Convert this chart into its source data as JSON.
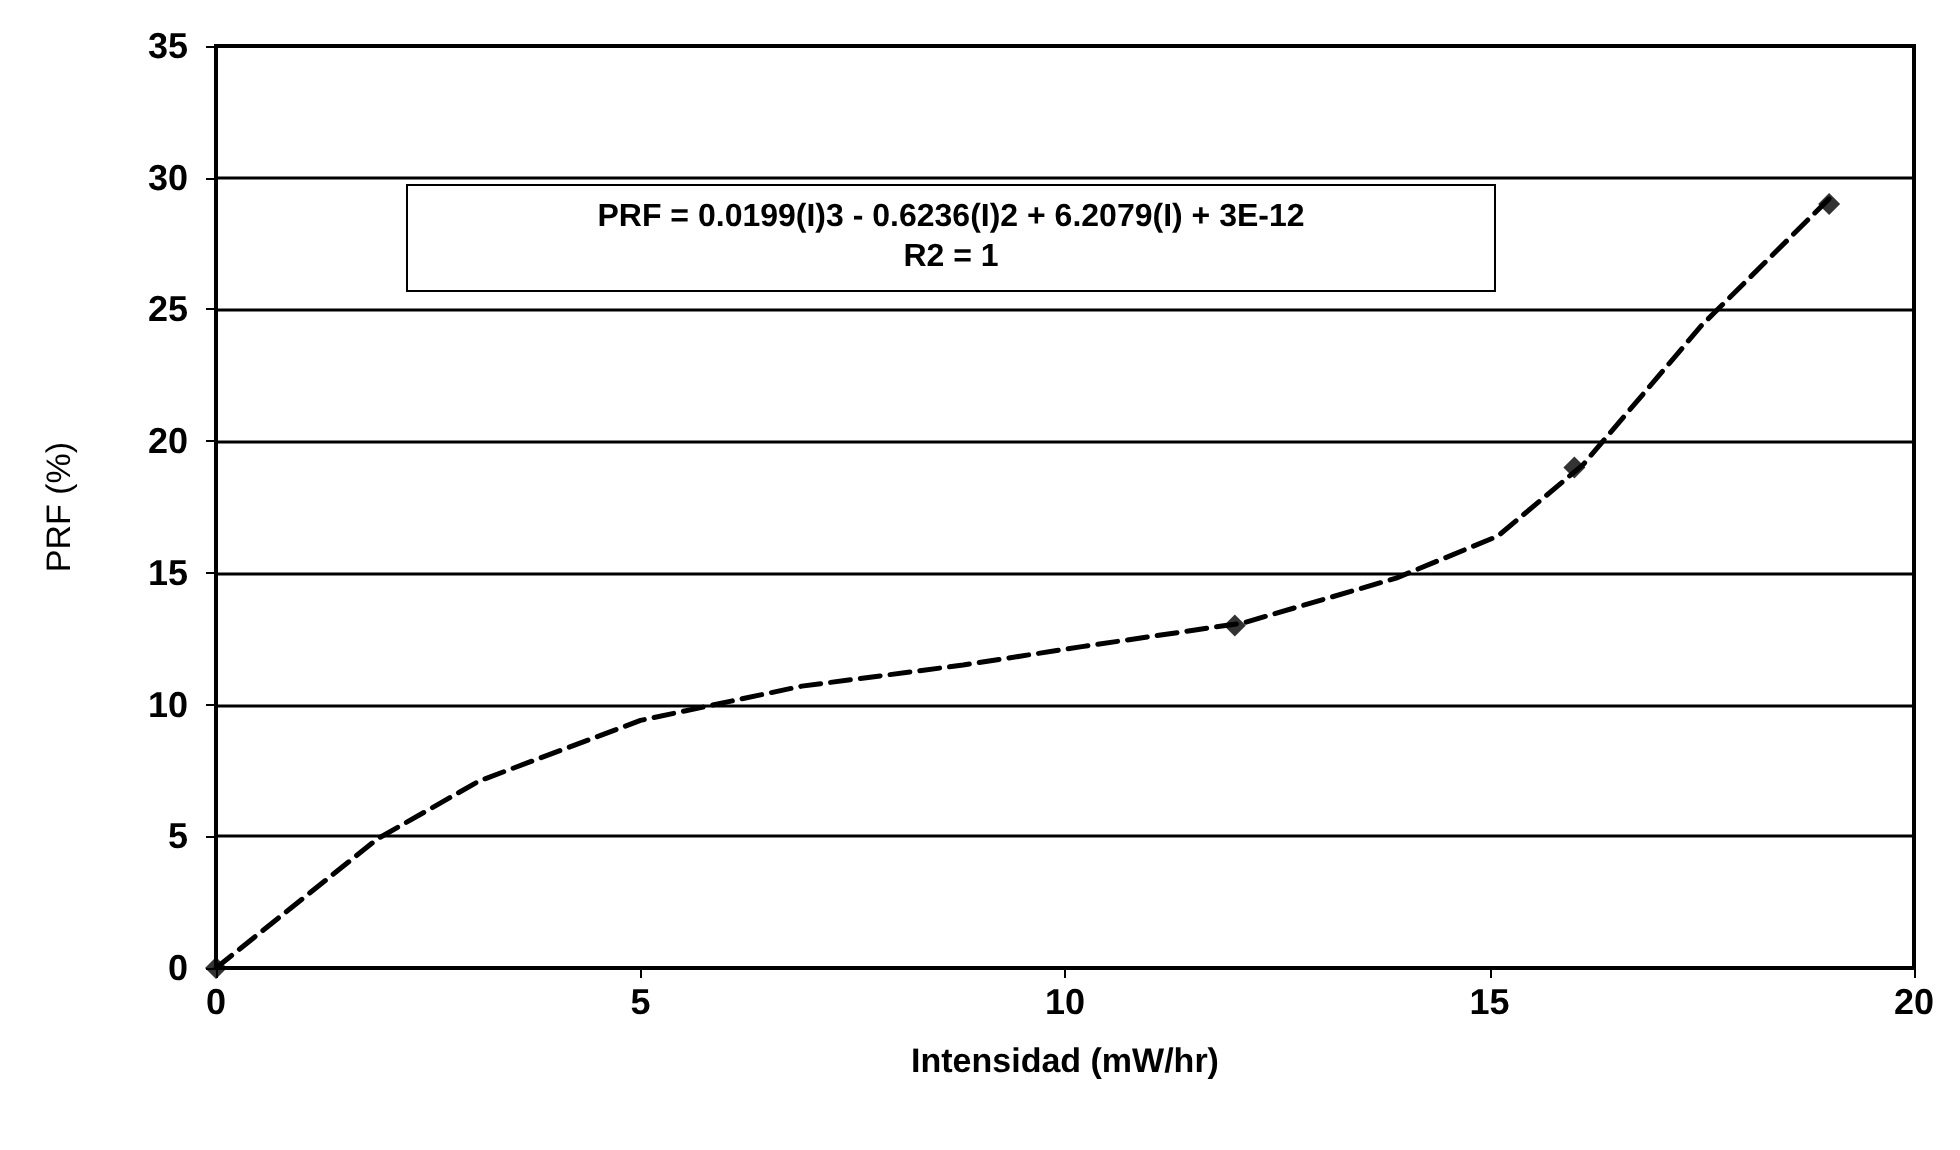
{
  "chart_data": {
    "type": "scatter",
    "xlabel": "Intensidad (mW/hr)",
    "ylabel": "PRF (%)",
    "annotations": [
      "PRF = 0.0199(I)3 - 0.6236(I)2 + 6.2079(I) + 3E-12",
      "R2 = 1"
    ],
    "series": [
      {
        "color": "#000000",
        "marker": "diamond",
        "x": [
          0,
          12,
          16,
          19
        ],
        "values": [
          0,
          13,
          19,
          29
        ]
      },
      {
        "type": "line",
        "color": "#000000",
        "marker": "none",
        "line_style": "dashed",
        "x": [
          0,
          1.9,
          3.1,
          5,
          6.9,
          8.8,
          10.2,
          12.1,
          13.9,
          15.1,
          16.1,
          17.5,
          19
        ],
        "values": [
          0,
          4.9,
          7.1,
          9.4,
          10.7,
          11.5,
          12.2,
          13.1,
          14.8,
          16.4,
          19.1,
          24.4,
          29.2
        ]
      }
    ],
    "xlim": [
      0,
      20
    ],
    "xticks": [
      0,
      5,
      10,
      15,
      20
    ],
    "ylim": [
      0,
      35
    ],
    "yticks": [
      0,
      5,
      10,
      15,
      20,
      25,
      30,
      35
    ],
    "grid": "y"
  }
}
